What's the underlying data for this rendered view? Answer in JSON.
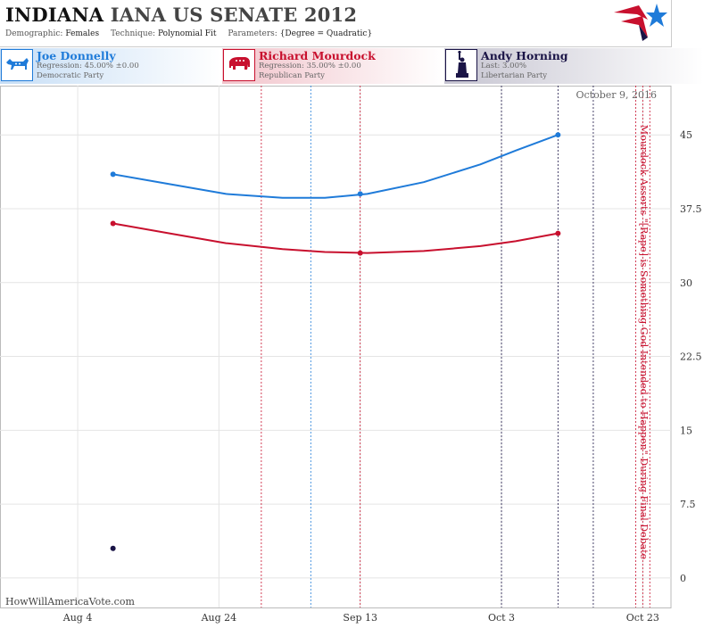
{
  "header": {
    "state": "INDIANA",
    "title_rest": "IANA US SENATE 2012",
    "demographic_label": "Demographic:",
    "demographic_value": "Females",
    "technique_label": "Technique:",
    "technique_value": "Polynomial Fit",
    "parameters_label": "Parameters:",
    "parameters_value": "{Degree = Quadratic}"
  },
  "candidates": [
    {
      "name": "Joe Donnelly",
      "line1": "Regression: 45.00% ±0.00",
      "line2": "Democratic Party",
      "color": "#1f7bd9",
      "icon": "donkey-icon"
    },
    {
      "name": "Richard Mourdock",
      "line1": "Regression: 35.00% ±0.00",
      "line2": "Republican Party",
      "color": "#c8102e",
      "icon": "elephant-icon"
    },
    {
      "name": "Andy Horning",
      "line1": "Last: 3.00%",
      "line2": "Libertarian Party",
      "color": "#1a1446",
      "icon": "statue-of-liberty-icon"
    }
  ],
  "watermark": "HowWillAmericaVote.com",
  "chart_data": {
    "type": "line",
    "x_ticks": [
      "Aug 4",
      "Aug 24",
      "Sep 13",
      "Oct 3",
      "Oct 23"
    ],
    "y_ticks": [
      "45",
      "37.5",
      "30",
      "22.5",
      "15",
      "7.5",
      "0"
    ],
    "ylim": [
      -3,
      50
    ],
    "xlim": [
      "2012-07-24",
      "2012-10-27"
    ],
    "grid": true,
    "date_label": "October 9, 2016",
    "annotation": "Mourdock Asserts \"[Rape] is Something God Intended to Happen\" During Final Debate",
    "event_lines": [
      {
        "date": "2012-08-30",
        "color": "#c8102e"
      },
      {
        "date": "2012-09-06",
        "color": "#1f7bd9"
      },
      {
        "date": "2012-09-13",
        "color": "#c8102e"
      },
      {
        "date": "2012-10-03",
        "color": "#1a1446"
      },
      {
        "date": "2012-10-11",
        "color": "#1a1446"
      },
      {
        "date": "2012-10-16",
        "color": "#1a1446"
      },
      {
        "date": "2012-10-22",
        "color": "#c8102e"
      },
      {
        "date": "2012-10-23",
        "color": "#c8102e"
      },
      {
        "date": "2012-10-24",
        "color": "#c8102e"
      }
    ],
    "series": [
      {
        "name": "Joe Donnelly",
        "color": "#1f7bd9",
        "points": [
          [
            "2012-08-09",
            41
          ],
          [
            "2012-09-13",
            39
          ],
          [
            "2012-10-11",
            45
          ]
        ],
        "curve": [
          [
            "2012-08-09",
            41
          ],
          [
            "2012-08-17",
            40
          ],
          [
            "2012-08-25",
            39
          ],
          [
            "2012-09-02",
            38.6
          ],
          [
            "2012-09-08",
            38.6
          ],
          [
            "2012-09-14",
            39
          ],
          [
            "2012-09-22",
            40.2
          ],
          [
            "2012-09-30",
            42
          ],
          [
            "2012-10-05",
            43.4
          ],
          [
            "2012-10-11",
            45
          ]
        ]
      },
      {
        "name": "Richard Mourdock",
        "color": "#c8102e",
        "points": [
          [
            "2012-08-09",
            36
          ],
          [
            "2012-09-13",
            33
          ],
          [
            "2012-10-11",
            35
          ]
        ],
        "curve": [
          [
            "2012-08-09",
            36
          ],
          [
            "2012-08-17",
            35
          ],
          [
            "2012-08-25",
            34
          ],
          [
            "2012-09-02",
            33.4
          ],
          [
            "2012-09-08",
            33.1
          ],
          [
            "2012-09-14",
            33
          ],
          [
            "2012-09-22",
            33.2
          ],
          [
            "2012-09-30",
            33.7
          ],
          [
            "2012-10-05",
            34.2
          ],
          [
            "2012-10-11",
            35
          ]
        ]
      },
      {
        "name": "Andy Horning",
        "color": "#1a1446",
        "points": [
          [
            "2012-08-09",
            3
          ]
        ],
        "curve": []
      }
    ]
  }
}
